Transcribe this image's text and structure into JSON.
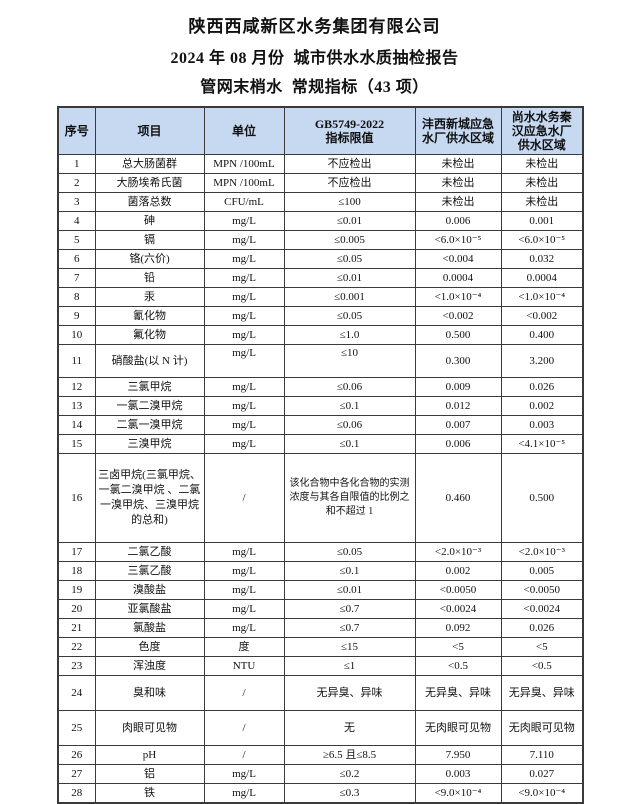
{
  "titles": {
    "line1": "陕西西咸新区水务集团有限公司",
    "line2": "2024 年 08 月份  城市供水水质抽检报告",
    "line3": "管网末梢水  常规指标（43 项）"
  },
  "table": {
    "header_bg": "#c6d9f1",
    "border_color": "#3a3a3a",
    "columns": [
      "序号",
      "项目",
      "单位",
      "GB5749-2022\n指标限值",
      "沣西新城应急\n水厂供水区域",
      "尚水水务秦\n汉应急水厂\n供水区域"
    ],
    "rows": [
      {
        "no": "1",
        "item": "总大肠菌群",
        "unit": "MPN /100mL",
        "limit": "不应检出",
        "fengxi": "未检出",
        "shangshui": "未检出"
      },
      {
        "no": "2",
        "item": "大肠埃希氏菌",
        "unit": "MPN /100mL",
        "limit": "不应检出",
        "fengxi": "未检出",
        "shangshui": "未检出"
      },
      {
        "no": "3",
        "item": "菌落总数",
        "unit": "CFU/mL",
        "limit": "≤100",
        "fengxi": "未检出",
        "shangshui": "未检出"
      },
      {
        "no": "4",
        "item": "砷",
        "unit": "mg/L",
        "limit": "≤0.01",
        "fengxi": "0.006",
        "shangshui": "0.001"
      },
      {
        "no": "5",
        "item": "镉",
        "unit": "mg/L",
        "limit": "≤0.005",
        "fengxi": "<6.0×10⁻⁵",
        "shangshui": "<6.0×10⁻⁵"
      },
      {
        "no": "6",
        "item": "铬(六价)",
        "unit": "mg/L",
        "limit": "≤0.05",
        "fengxi": "<0.004",
        "shangshui": "0.032"
      },
      {
        "no": "7",
        "item": "铅",
        "unit": "mg/L",
        "limit": "≤0.01",
        "fengxi": "0.0004",
        "shangshui": "0.0004"
      },
      {
        "no": "8",
        "item": "汞",
        "unit": "mg/L",
        "limit": "≤0.001",
        "fengxi": "<1.0×10⁻⁴",
        "shangshui": "<1.0×10⁻⁴"
      },
      {
        "no": "9",
        "item": "氰化物",
        "unit": "mg/L",
        "limit": "≤0.05",
        "fengxi": "<0.002",
        "shangshui": "<0.002"
      },
      {
        "no": "10",
        "item": "氟化物",
        "unit": "mg/L",
        "limit": "≤1.0",
        "fengxi": "0.500",
        "shangshui": "0.400"
      },
      {
        "no": "11",
        "item": "硝酸盐(以 N 计)",
        "unit": "mg/L",
        "limit": "≤10",
        "fengxi": "0.300",
        "shangshui": "3.200"
      },
      {
        "no": "12",
        "item": "三氯甲烷",
        "unit": "mg/L",
        "limit": "≤0.06",
        "fengxi": "0.009",
        "shangshui": "0.026"
      },
      {
        "no": "13",
        "item": "一氯二溴甲烷",
        "unit": "mg/L",
        "limit": "≤0.1",
        "fengxi": "0.012",
        "shangshui": "0.002"
      },
      {
        "no": "14",
        "item": "二氯一溴甲烷",
        "unit": "mg/L",
        "limit": "≤0.06",
        "fengxi": "0.007",
        "shangshui": "0.003"
      },
      {
        "no": "15",
        "item": "三溴甲烷",
        "unit": "mg/L",
        "limit": "≤0.1",
        "fengxi": "0.006",
        "shangshui": "<4.1×10⁻⁵"
      },
      {
        "no": "16",
        "item": "三卤甲烷(三氯甲烷、 一氯二溴甲烷 、二氯一溴甲烷、三溴甲烷的总和)",
        "unit": "/",
        "limit": "该化合物中各化合物的实测浓度与其各自限值的比例之和不超过 1",
        "fengxi": "0.460",
        "shangshui": "0.500"
      },
      {
        "no": "17",
        "item": "二氯乙酸",
        "unit": "mg/L",
        "limit": "≤0.05",
        "fengxi": "<2.0×10⁻³",
        "shangshui": "<2.0×10⁻³"
      },
      {
        "no": "18",
        "item": "三氯乙酸",
        "unit": "mg/L",
        "limit": "≤0.1",
        "fengxi": "0.002",
        "shangshui": "0.005"
      },
      {
        "no": "19",
        "item": "溴酸盐",
        "unit": "mg/L",
        "limit": "≤0.01",
        "fengxi": "<0.0050",
        "shangshui": "<0.0050"
      },
      {
        "no": "20",
        "item": "亚氯酸盐",
        "unit": "mg/L",
        "limit": "≤0.7",
        "fengxi": "<0.0024",
        "shangshui": "<0.0024"
      },
      {
        "no": "21",
        "item": "氯酸盐",
        "unit": "mg/L",
        "limit": "≤0.7",
        "fengxi": "0.092",
        "shangshui": "0.026"
      },
      {
        "no": "22",
        "item": "色度",
        "unit": "度",
        "limit": "≤15",
        "fengxi": "<5",
        "shangshui": "<5"
      },
      {
        "no": "23",
        "item": "浑浊度",
        "unit": "NTU",
        "limit": "≤1",
        "fengxi": "<0.5",
        "shangshui": "<0.5"
      },
      {
        "no": "24",
        "item": "臭和味",
        "unit": "/",
        "limit": "无异臭、异味",
        "fengxi": "无异臭、异味",
        "shangshui": "无异臭、异味"
      },
      {
        "no": "25",
        "item": "肉眼可见物",
        "unit": "/",
        "limit": "无",
        "fengxi": "无肉眼可见物",
        "shangshui": "无肉眼可见物"
      },
      {
        "no": "26",
        "item": "pH",
        "unit": "/",
        "limit": "≥6.5 且≤8.5",
        "fengxi": "7.950",
        "shangshui": "7.110"
      },
      {
        "no": "27",
        "item": "铝",
        "unit": "mg/L",
        "limit": "≤0.2",
        "fengxi": "0.003",
        "shangshui": "0.027"
      },
      {
        "no": "28",
        "item": "铁",
        "unit": "mg/L",
        "limit": "≤0.3",
        "fengxi": "<9.0×10⁻⁴",
        "shangshui": "<9.0×10⁻⁴"
      }
    ]
  }
}
